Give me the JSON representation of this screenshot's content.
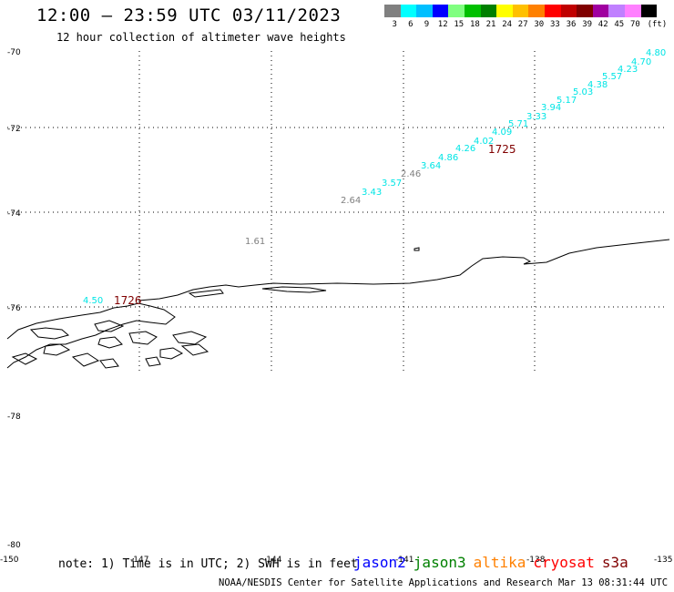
{
  "title": "12:00 — 23:59 UTC 03/11/2023",
  "subtitle": "12 hour collection of altimeter wave heights",
  "colorbar": {
    "colors": [
      "#808080",
      "#00ffff",
      "#00bfff",
      "#0000ff",
      "#80ff80",
      "#00c000",
      "#008000",
      "#ffff00",
      "#ffc000",
      "#ff8000",
      "#ff0000",
      "#c00000",
      "#800000",
      "#a000a0",
      "#c080ff",
      "#ff80ff",
      "#000000"
    ],
    "labels": [
      "3",
      "6",
      "9",
      "12",
      "15",
      "18",
      "21",
      "24",
      "27",
      "30",
      "33",
      "36",
      "39",
      "42",
      "45",
      "70",
      "(ft)"
    ]
  },
  "latitude_labels": [
    "-70",
    "-72",
    "-74",
    "-76",
    "-78",
    "-80"
  ],
  "longitude_labels": [
    "-150",
    "-147",
    "-144",
    "-141",
    "-138",
    "-135"
  ],
  "wave_heights": [
    {
      "value": "4.80",
      "color": "#00e5e5"
    },
    {
      "value": "4.70",
      "color": "#00e5e5"
    },
    {
      "value": "4.23",
      "color": "#00e5e5"
    },
    {
      "value": "5.57",
      "color": "#00e5e5"
    },
    {
      "value": "4.38",
      "color": "#00e5e5"
    },
    {
      "value": "5.03",
      "color": "#00e5e5"
    },
    {
      "value": "5.17",
      "color": "#00e5e5"
    },
    {
      "value": "3.94",
      "color": "#00e5e5"
    },
    {
      "value": "3.33",
      "color": "#00e5e5"
    },
    {
      "value": "5.71",
      "color": "#00e5e5"
    },
    {
      "value": "4.09",
      "color": "#00e5e5"
    },
    {
      "value": "4.02",
      "color": "#00e5e5"
    },
    {
      "value": "4.26",
      "color": "#00e5e5"
    },
    {
      "value": "4.86",
      "color": "#00e5e5"
    },
    {
      "value": "3.64",
      "color": "#00e5e5"
    },
    {
      "value": "2.46",
      "color": "#808080"
    },
    {
      "value": "3.57",
      "color": "#00e5e5"
    },
    {
      "value": "3.43",
      "color": "#00e5e5"
    },
    {
      "value": "2.64",
      "color": "#808080"
    },
    {
      "value": "1.61",
      "color": "#808080"
    },
    {
      "value": "4.50",
      "color": "#00e5e5"
    }
  ],
  "orbit_labels": [
    {
      "text": "1725",
      "color": "#800000"
    },
    {
      "text": "1726",
      "color": "#800000"
    }
  ],
  "note": "note: 1) Time is in UTC; 2) SWH is in feet",
  "satellites": [
    {
      "name": "jason2",
      "color": "#0000ff"
    },
    {
      "name": "jason3",
      "color": "#008000"
    },
    {
      "name": "altika",
      "color": "#ff8000"
    },
    {
      "name": "cryosat",
      "color": "#ff0000"
    },
    {
      "name": "s3a",
      "color": "#800000"
    }
  ],
  "footer": "NOAA/NESDIS Center for Satellite Applications and Research   Mar 13 08:31:44 UTC 2023"
}
